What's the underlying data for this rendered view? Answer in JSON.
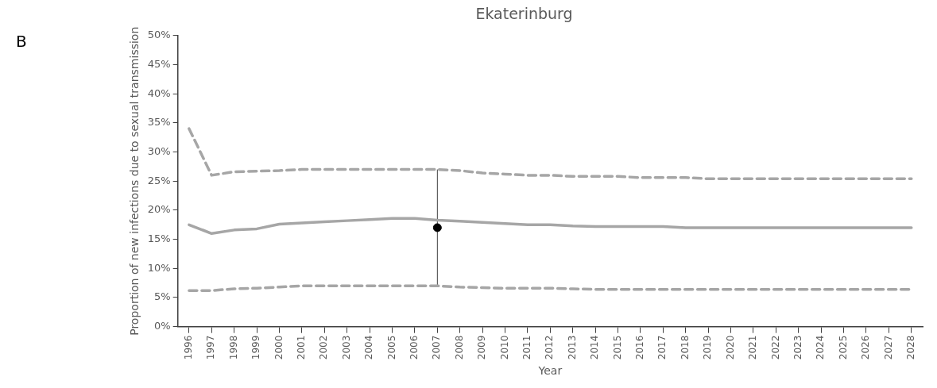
{
  "chart_data": {
    "type": "line",
    "title": "Ekaterinburg",
    "xlabel": "Year",
    "ylabel": "Proportion of new infections due to sexual transmission",
    "annotations": [
      "B"
    ],
    "categories": [
      "1996",
      "1997",
      "1998",
      "1999",
      "2000",
      "2001",
      "2002",
      "2003",
      "2004",
      "2005",
      "2006",
      "2007",
      "2008",
      "2009",
      "2010",
      "2011",
      "2012",
      "2013",
      "2014",
      "2015",
      "2016",
      "2017",
      "2018",
      "2019",
      "2020",
      "2021",
      "2022",
      "2023",
      "2024",
      "2025",
      "2026",
      "2027",
      "2028"
    ],
    "series": [
      {
        "color": "#a6a6a6",
        "line_style": "solid",
        "values": [
          17.5,
          16,
          16.6,
          16.8,
          17.6,
          17.8,
          18,
          18.2,
          18.4,
          18.6,
          18.6,
          18.3,
          18.1,
          17.9,
          17.7,
          17.5,
          17.5,
          17.3,
          17.2,
          17.2,
          17.2,
          17.2,
          17,
          17,
          17,
          17,
          17,
          17,
          17,
          17,
          17,
          17,
          17
        ]
      },
      {
        "color": "#a6a6a6",
        "line_style": "dashed",
        "values": [
          34,
          26,
          26.6,
          26.7,
          26.8,
          27,
          27,
          27,
          27,
          27,
          27,
          27,
          26.8,
          26.4,
          26.2,
          26,
          26,
          25.8,
          25.8,
          25.8,
          25.6,
          25.6,
          25.6,
          25.4,
          25.4,
          25.4,
          25.4,
          25.4,
          25.4,
          25.4,
          25.4,
          25.4,
          25.4
        ]
      },
      {
        "color": "#a6a6a6",
        "line_style": "dashed",
        "values": [
          6.2,
          6.2,
          6.5,
          6.6,
          6.8,
          7,
          7,
          7,
          7,
          7,
          7,
          7,
          6.8,
          6.7,
          6.6,
          6.6,
          6.6,
          6.5,
          6.4,
          6.4,
          6.4,
          6.4,
          6.4,
          6.4,
          6.4,
          6.4,
          6.4,
          6.4,
          6.4,
          6.4,
          6.4,
          6.4,
          6.4
        ]
      },
      {
        "type": "scatter",
        "color": "#000000",
        "marker": "circle",
        "values": [
          null,
          null,
          null,
          null,
          null,
          null,
          null,
          null,
          null,
          null,
          null,
          17,
          null,
          null,
          null,
          null,
          null,
          null,
          null,
          null,
          null,
          null,
          null,
          null,
          null,
          null,
          null,
          null,
          null,
          null,
          null,
          null,
          null
        ],
        "errors": [
          null,
          null,
          null,
          null,
          null,
          null,
          null,
          null,
          null,
          null,
          null,
          [
            7,
            27
          ],
          null,
          null,
          null,
          null,
          null,
          null,
          null,
          null,
          null,
          null,
          null,
          null,
          null,
          null,
          null,
          null,
          null,
          null,
          null,
          null,
          null
        ]
      }
    ],
    "ylim": [
      0,
      50
    ],
    "yticks": [
      {
        "value": 0,
        "label": "0%"
      },
      {
        "value": 5,
        "label": "5%"
      },
      {
        "value": 10,
        "label": "10%"
      },
      {
        "value": 15,
        "label": "15%"
      },
      {
        "value": 20,
        "label": "20%"
      },
      {
        "value": 25,
        "label": "25%"
      },
      {
        "value": 30,
        "label": "30%"
      },
      {
        "value": 35,
        "label": "35%"
      },
      {
        "value": 40,
        "label": "40%"
      },
      {
        "value": 45,
        "label": "45%"
      },
      {
        "value": 50,
        "label": "50%"
      }
    ],
    "grid": false,
    "legend": false,
    "marker": "none"
  }
}
